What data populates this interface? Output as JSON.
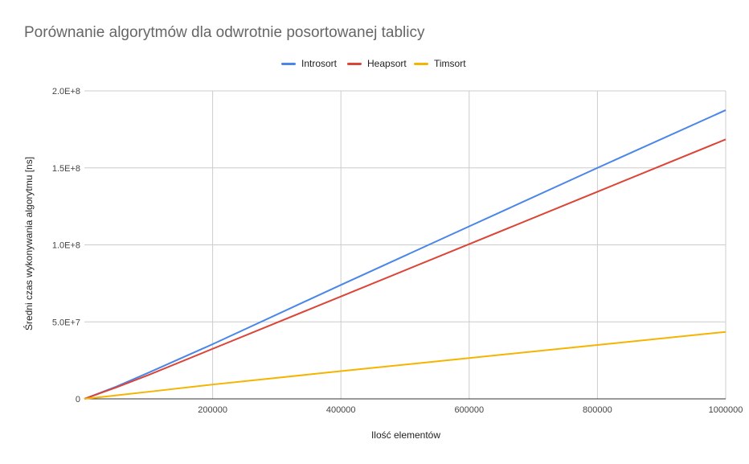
{
  "chart_data": {
    "type": "line",
    "title": "Porównanie algorytmów dla odwrotnie posortowanej tablicy",
    "xlabel": "Ilość elementów",
    "ylabel": "Średni czas wykonywania algorytmu [ns]",
    "xlim": [
      0,
      1000000
    ],
    "ylim": [
      0,
      200000000
    ],
    "x_ticks": [
      200000,
      400000,
      600000,
      800000,
      1000000
    ],
    "x_tick_labels": [
      "200000",
      "400000",
      "600000",
      "800000",
      "1000000"
    ],
    "y_ticks": [
      0,
      50000000,
      100000000,
      150000000,
      200000000
    ],
    "y_tick_labels": [
      "0",
      "5.0E+7",
      "1.0E+8",
      "1.5E+8",
      "2.0E+8"
    ],
    "grid": true,
    "legend_position": "top",
    "x": [
      0,
      50000,
      100000,
      200000,
      400000,
      600000,
      800000,
      1000000
    ],
    "series": [
      {
        "name": "Introsort",
        "color": "#4a86e8",
        "values": [
          0,
          8000000,
          17000000,
          35500000,
          74000000,
          112000000,
          150000000,
          187500000
        ]
      },
      {
        "name": "Heapsort",
        "color": "#db4437",
        "values": [
          0,
          7500000,
          15500000,
          32500000,
          66500000,
          100500000,
          134500000,
          168500000
        ]
      },
      {
        "name": "Timsort",
        "color": "#f4b400",
        "values": [
          0,
          2300000,
          4600000,
          9300000,
          18000000,
          26500000,
          35000000,
          43500000
        ]
      }
    ]
  }
}
